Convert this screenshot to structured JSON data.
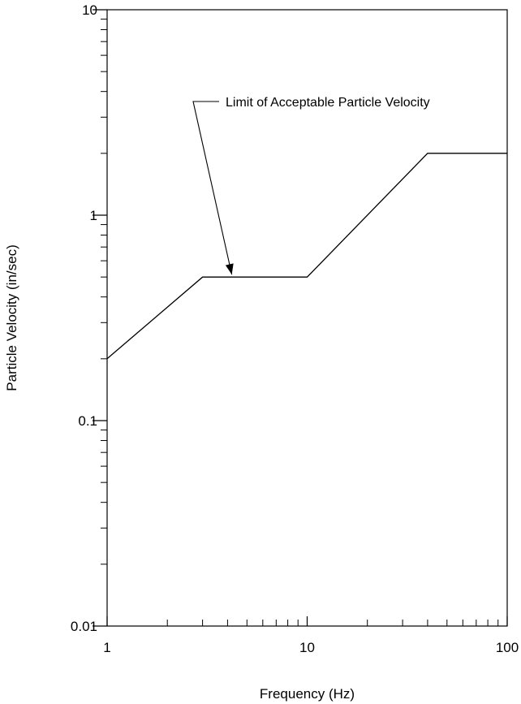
{
  "chart_data": {
    "type": "line",
    "title": "",
    "xlabel": "Frequency (Hz)",
    "ylabel": "Particle Velocity (in/sec)",
    "xscale": "log",
    "yscale": "log",
    "xlim": [
      1,
      100
    ],
    "ylim": [
      0.01,
      10
    ],
    "x_ticks": [
      {
        "value": 1,
        "label": "1"
      },
      {
        "value": 10,
        "label": "10"
      },
      {
        "value": 100,
        "label": "100"
      }
    ],
    "y_ticks": [
      {
        "value": 0.01,
        "label": "0.01"
      },
      {
        "value": 0.1,
        "label": "0.1"
      },
      {
        "value": 1,
        "label": "1"
      },
      {
        "value": 10,
        "label": "10"
      }
    ],
    "grid": false,
    "legend": "none",
    "series": [
      {
        "x": [
          1,
          3,
          10,
          40,
          100
        ],
        "y": [
          0.2,
          0.5,
          0.5,
          2,
          2
        ]
      }
    ],
    "annotations": [
      {
        "text": "Limit of Acceptable Particle Velocity",
        "points_to": {
          "x": 4.2,
          "y": 0.5
        }
      }
    ]
  }
}
